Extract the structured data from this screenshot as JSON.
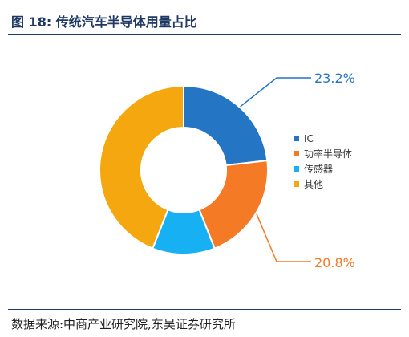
{
  "figure": {
    "title": "图 18:  传统汽车半导体用量占比",
    "source": "数据来源:中商产业研究院,东吴证券研究所"
  },
  "chart_data": {
    "type": "pie",
    "variant": "donut",
    "categories": [
      "IC",
      "功率半导体",
      "传感器",
      "其他"
    ],
    "values": [
      23.2,
      20.8,
      12.0,
      44.0
    ],
    "unit": "%",
    "colors": [
      "#2475c4",
      "#f47a25",
      "#17b0f2",
      "#f5a70f"
    ],
    "data_labels": [
      {
        "category": "IC",
        "text": "23.2%",
        "color": "#2475c4"
      },
      {
        "category": "功率半导体",
        "text": "20.8%",
        "color": "#f47a25"
      }
    ],
    "legend": {
      "position": "right"
    }
  }
}
